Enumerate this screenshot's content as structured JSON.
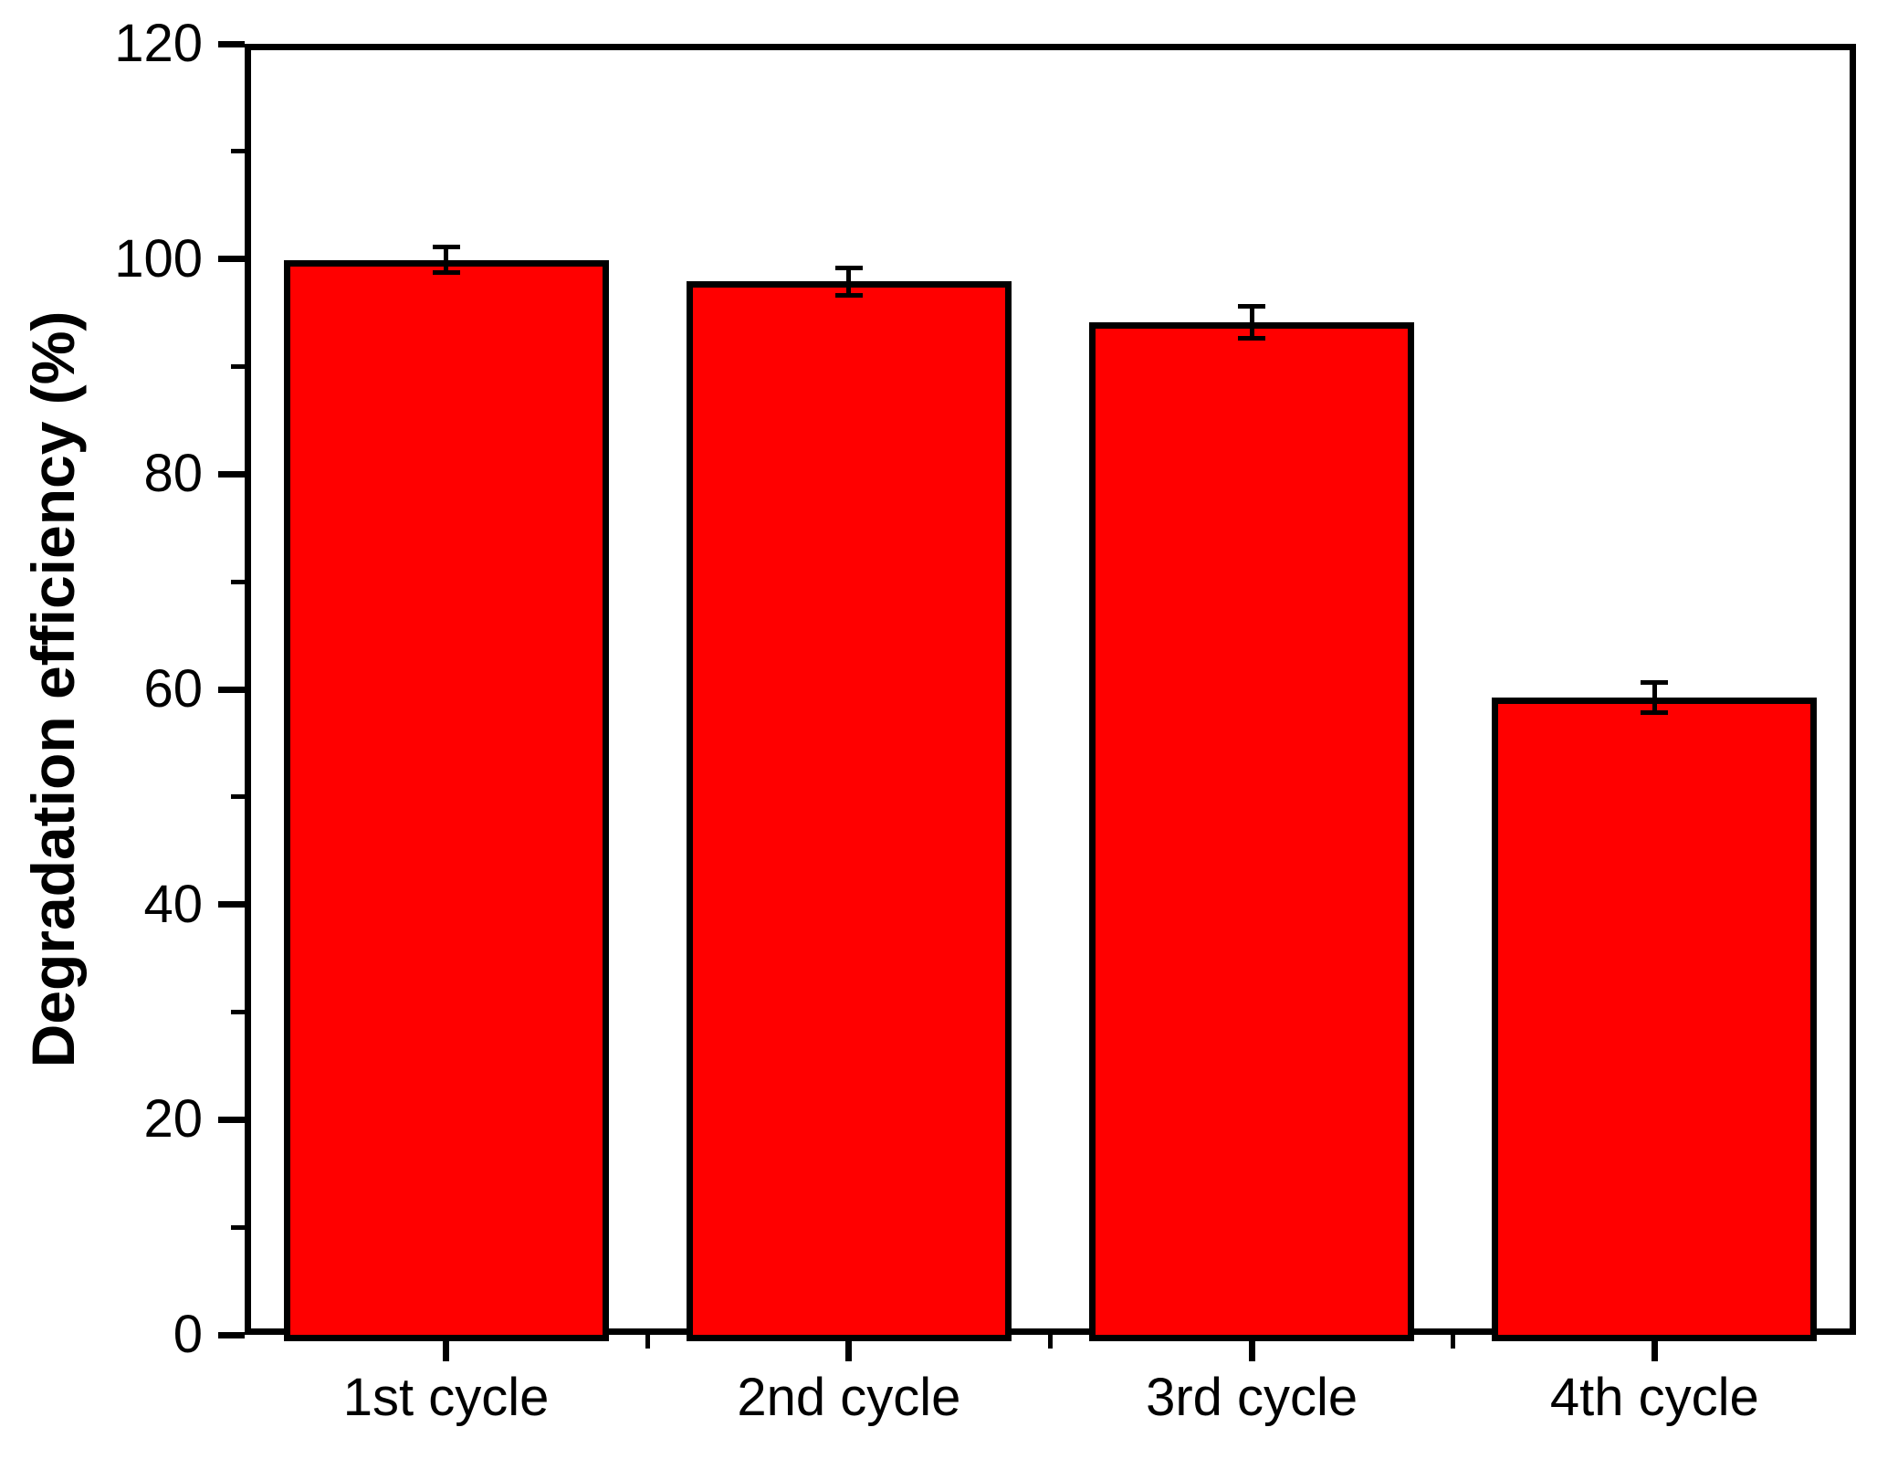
{
  "chart_data": {
    "type": "bar",
    "categories": [
      "1st cycle",
      "2nd cycle",
      "3rd cycle",
      "4th cycle"
    ],
    "values": [
      99.9,
      97.9,
      94.1,
      59.2
    ],
    "errors": [
      1.2,
      1.3,
      1.5,
      1.4
    ],
    "title": "",
    "xlabel": "",
    "ylabel": "Degradation efficiency (%)",
    "ylim": [
      0,
      120
    ],
    "ytick_major_step": 20,
    "ytick_minor_step": 10,
    "ytick_labels": [
      "0",
      "20",
      "40",
      "60",
      "80",
      "100",
      "120"
    ],
    "bar_color": "#FF0000",
    "bar_border_color": "#000000",
    "error_bar_color": "#000000",
    "axis_color": "#000000",
    "background_color": "#FFFFFF",
    "grid": false,
    "legend": "none"
  }
}
